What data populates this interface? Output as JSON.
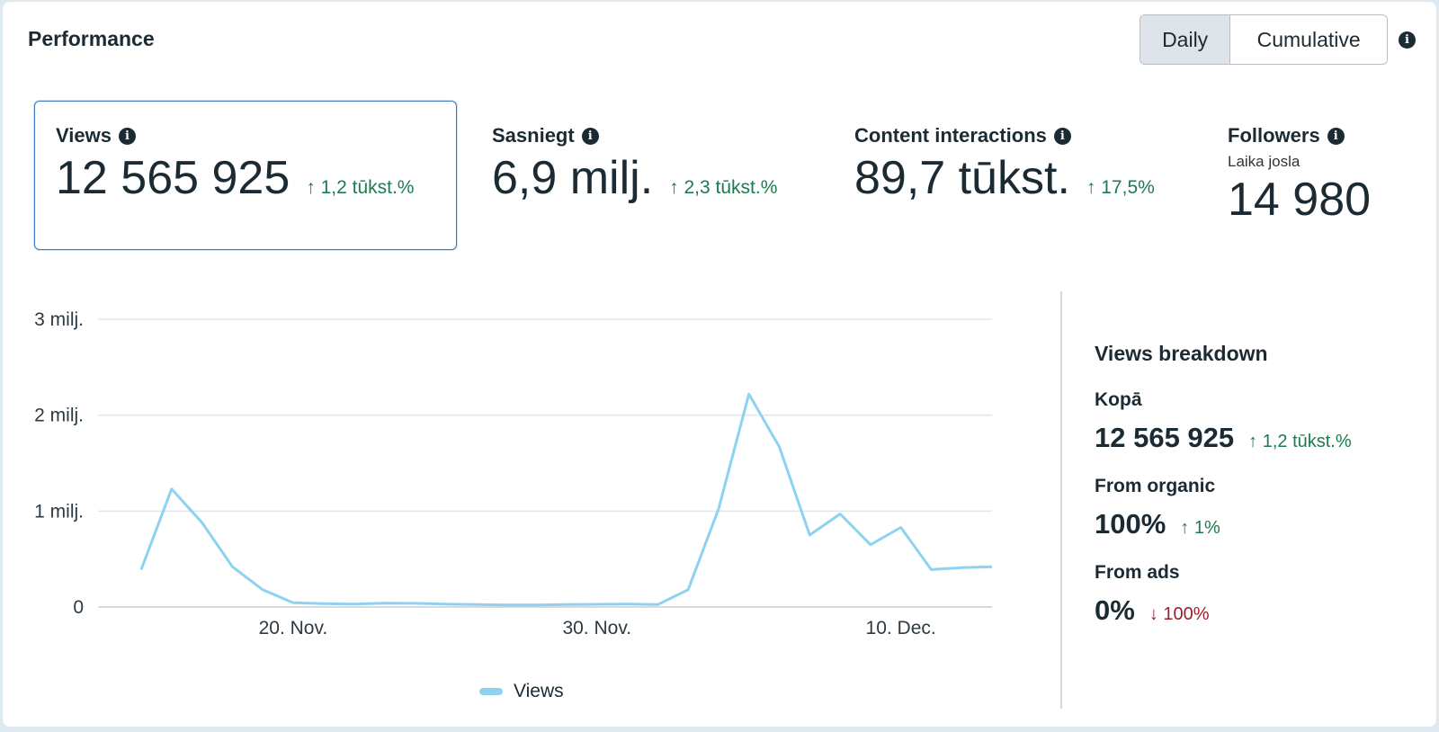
{
  "header": {
    "title": "Performance",
    "toggle": {
      "daily_label": "Daily",
      "cumulative_label": "Cumulative",
      "active": "Daily"
    }
  },
  "metrics": {
    "views": {
      "label": "Views",
      "value": "12 565 925",
      "delta": "↑ 1,2 tūkst.%",
      "direction": "up"
    },
    "reach": {
      "label": "Sasniegt",
      "value": "6,9 milj.",
      "delta": "↑ 2,3 tūkst.%",
      "direction": "up"
    },
    "interactions": {
      "label": "Content interactions",
      "value": "89,7 tūkst.",
      "delta": "↑ 17,5%",
      "direction": "up"
    },
    "followers": {
      "label": "Followers",
      "sublabel": "Laika josla",
      "value": "14 980"
    }
  },
  "chart_data": {
    "type": "line",
    "series": [
      {
        "name": "Views",
        "color": "#8dd2ef",
        "x": [
          "15. Nov.",
          "16. Nov.",
          "17. Nov.",
          "18. Nov.",
          "19. Nov.",
          "20. Nov.",
          "21. Nov.",
          "22. Nov.",
          "23. Nov.",
          "24. Nov.",
          "25. Nov.",
          "26. Nov.",
          "27. Nov.",
          "28. Nov.",
          "29. Nov.",
          "30. Nov.",
          "1. Dec.",
          "2. Dec.",
          "3. Dec.",
          "4. Dec.",
          "5. Dec.",
          "6. Dec.",
          "7. Dec.",
          "8. Dec.",
          "9. Dec.",
          "10. Dec.",
          "11. Dec.",
          "12. Dec.",
          "13. Dec."
        ],
        "values": [
          390000,
          1230000,
          880000,
          420000,
          180000,
          45000,
          35000,
          30000,
          40000,
          38000,
          30000,
          25000,
          22000,
          22000,
          25000,
          28000,
          30000,
          25000,
          180000,
          1020000,
          2220000,
          1670000,
          750000,
          970000,
          650000,
          830000,
          390000,
          410000,
          420000
        ]
      }
    ],
    "x_ticks": [
      "20. Nov.",
      "30. Nov.",
      "10. Dec."
    ],
    "y_ticks": [
      "0",
      "1 milj.",
      "2 milj.",
      "3 milj."
    ],
    "ylim": [
      0,
      3000000
    ],
    "grid": true,
    "legend": "bottom-center"
  },
  "breakdown": {
    "title": "Views breakdown",
    "total": {
      "label": "Kopā",
      "value": "12 565 925",
      "delta": "↑ 1,2 tūkst.%"
    },
    "organic": {
      "label": "From organic",
      "value": "100%",
      "delta": "↑ 1%"
    },
    "ads": {
      "label": "From ads",
      "value": "0%",
      "delta": "↓ 100%"
    }
  },
  "colors": {
    "positive": "#1f7a4f",
    "negative": "#9a1f2b",
    "line": "#8dd2ef",
    "selected_border": "#3a7bbf"
  }
}
